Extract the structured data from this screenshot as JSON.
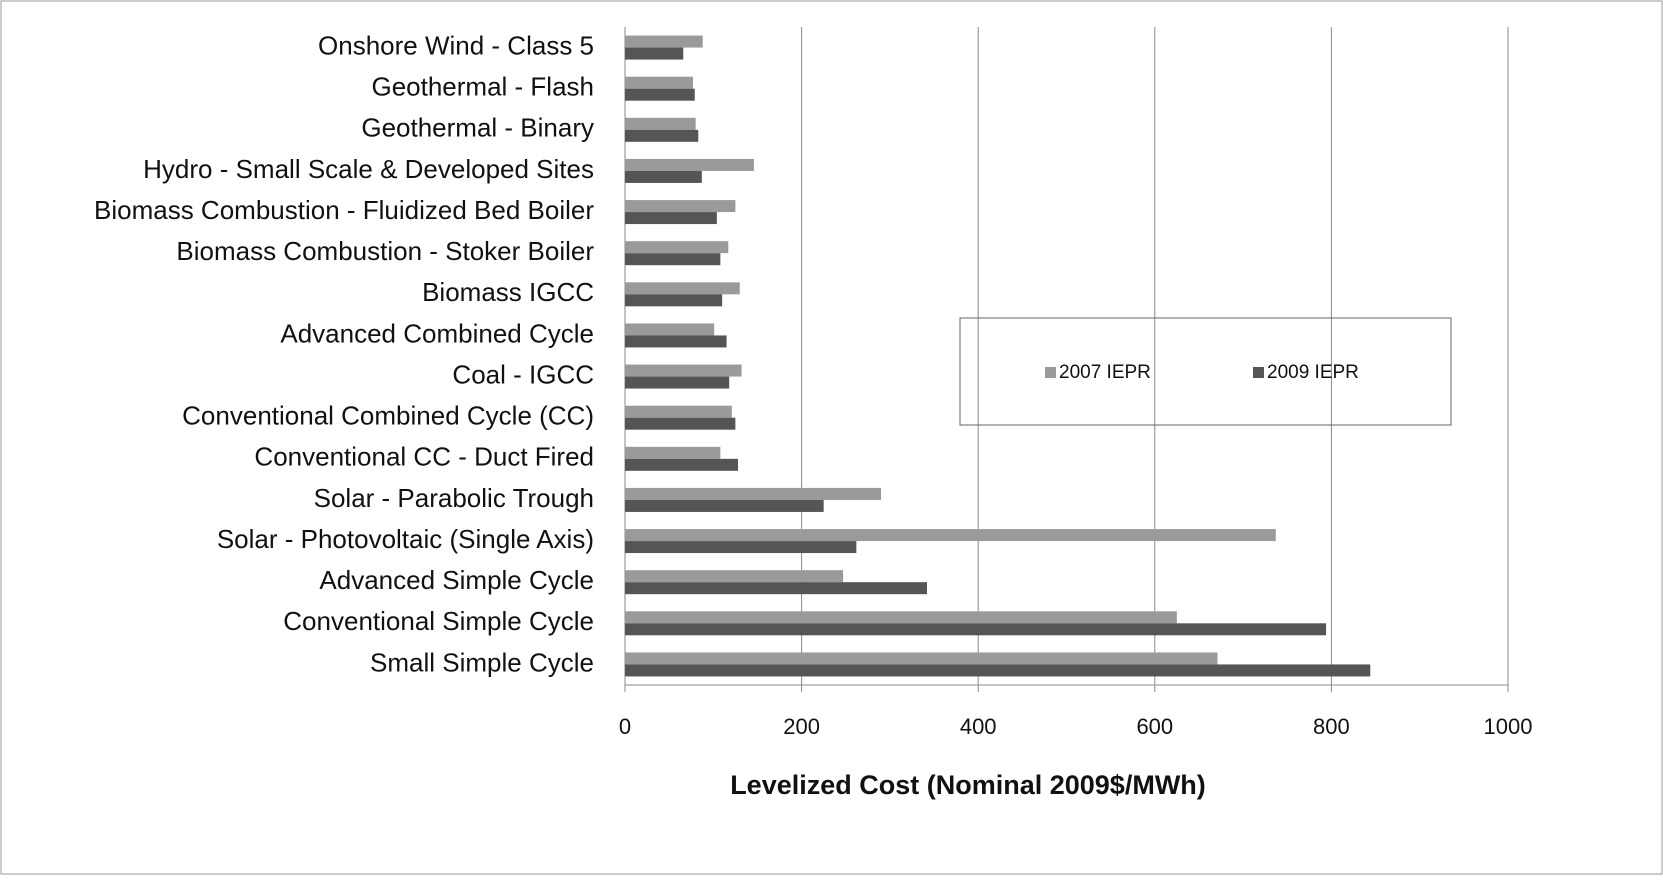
{
  "chart_data": {
    "type": "bar",
    "orientation": "horizontal",
    "x_label": "Levelized Cost  (Nominal 2009$/MWh)",
    "categories": [
      "Onshore Wind - Class 5",
      "Geothermal - Flash",
      "Geothermal - Binary",
      "Hydro - Small Scale & Developed Sites",
      "Biomass Combustion - Fluidized Bed Boiler",
      "Biomass Combustion - Stoker Boiler",
      "Biomass IGCC",
      "Advanced Combined Cycle",
      "Coal - IGCC",
      "Conventional Combined Cycle (CC)",
      "Conventional CC - Duct Fired",
      "Solar - Parabolic Trough",
      "Solar - Photovoltaic (Single Axis)",
      "Advanced Simple Cycle",
      "Conventional Simple Cycle",
      "Small Simple Cycle"
    ],
    "series": [
      {
        "name": "2007 IEPR",
        "color": "#9a9a9a",
        "values": [
          88,
          77,
          80,
          146,
          125,
          117,
          130,
          101,
          132,
          121,
          108,
          290,
          737,
          247,
          625,
          671
        ]
      },
      {
        "name": "2009 IEPR",
        "color": "#555555",
        "values": [
          66,
          79,
          83,
          87,
          104,
          108,
          110,
          115,
          118,
          125,
          128,
          225,
          262,
          342,
          794,
          844
        ]
      }
    ],
    "xlim": [
      0,
      1000
    ],
    "xticks": [
      0,
      200,
      400,
      600,
      800,
      1000
    ],
    "grid": true,
    "legend": "inside-right"
  }
}
